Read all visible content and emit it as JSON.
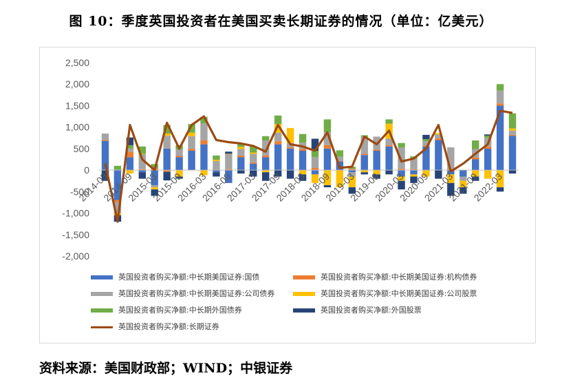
{
  "title": "图 10：季度英国投资者在美国买卖长期证券的情况（单位：亿美元）",
  "source": "资料来源：美国财政部；WIND；中银证券",
  "chart_data": {
    "type": "bar",
    "stacked": true,
    "title": "",
    "xlabel": "",
    "ylabel": "",
    "ylim": [
      -2000,
      2500
    ],
    "yticks": [
      2500,
      2000,
      1500,
      1000,
      500,
      0,
      -500,
      -1000,
      -1500,
      -2000
    ],
    "ytick_labels": [
      "2,500",
      "2,000",
      "1,500",
      "1,000",
      "500",
      "0",
      "-500",
      "-1,000",
      "-1,500",
      "-2,000"
    ],
    "categories": [
      "2014-03",
      "2014-06",
      "2014-09",
      "2014-12",
      "2015-03",
      "2015-06",
      "2015-09",
      "2015-12",
      "2016-03",
      "2016-06",
      "2016-09",
      "2016-12",
      "2017-03",
      "2017-06",
      "2017-09",
      "2017-12",
      "2018-03",
      "2018-06",
      "2018-09",
      "2018-12",
      "2019-03",
      "2019-06",
      "2019-09",
      "2019-12",
      "2020-03",
      "2020-06",
      "2020-09",
      "2020-12",
      "2021-03",
      "2021-06",
      "2021-09",
      "2021-12",
      "2022-03",
      "2022-06"
    ],
    "x_tick_labels": [
      "2014-03",
      "2014-09",
      "2015-03",
      "2015-09",
      "2016-03",
      "2016-09",
      "2017-03",
      "2017-09",
      "2018-03",
      "2018-09",
      "2019-03",
      "2019-09",
      "2020-03",
      "2020-09",
      "2021-03",
      "2021-09",
      "2022-03"
    ],
    "grid": false,
    "legend_position": "bottom",
    "series": [
      {
        "name": "英国投资者购买净额:中长期美国证券:国债",
        "color": "#4472c4",
        "values": [
          680,
          -700,
          300,
          -50,
          -350,
          500,
          300,
          450,
          600,
          -50,
          -300,
          300,
          150,
          300,
          600,
          500,
          450,
          -100,
          500,
          200,
          -50,
          350,
          450,
          550,
          -150,
          -100,
          550,
          700,
          -100,
          -150,
          250,
          500,
          1500,
          800
        ]
      },
      {
        "name": "英国投资者购买净额:中长期美国证券:机构债券",
        "color": "#ed7d31",
        "values": [
          20,
          -50,
          120,
          20,
          40,
          -40,
          30,
          40,
          90,
          10,
          20,
          40,
          30,
          40,
          70,
          30,
          40,
          50,
          80,
          10,
          30,
          30,
          30,
          30,
          30,
          20,
          20,
          30,
          30,
          10,
          40,
          50,
          50,
          20
        ]
      },
      {
        "name": "英国投资者购买净额:中长期美国证券:公司债券",
        "color": "#a5a5a5",
        "values": [
          150,
          -250,
          80,
          350,
          -50,
          300,
          150,
          300,
          400,
          200,
          350,
          150,
          200,
          350,
          200,
          100,
          150,
          250,
          300,
          100,
          -100,
          400,
          300,
          150,
          500,
          250,
          100,
          100,
          500,
          -100,
          200,
          200,
          300,
          100
        ]
      },
      {
        "name": "英国投资者购买净额:中长期美国证券:公司股票",
        "color": "#ffc000",
        "values": [
          0,
          -50,
          -80,
          10,
          -50,
          50,
          -150,
          80,
          -120,
          30,
          10,
          50,
          30,
          -50,
          200,
          350,
          -100,
          -200,
          -350,
          -400,
          -250,
          -50,
          -100,
          350,
          -100,
          -50,
          -150,
          30,
          -200,
          -150,
          -150,
          -200,
          -400,
          50
        ]
      },
      {
        "name": "英国投资者购买净额:中长期外国债券",
        "color": "#70ad47",
        "values": [
          0,
          100,
          80,
          170,
          100,
          200,
          100,
          200,
          150,
          100,
          0,
          80,
          150,
          100,
          200,
          0,
          200,
          150,
          300,
          150,
          50,
          30,
          0,
          100,
          100,
          50,
          50,
          0,
          0,
          0,
          200,
          50,
          150,
          350
        ]
      },
      {
        "name": "英国投资者购买净额:外国股票",
        "color": "#264478",
        "values": [
          -250,
          -150,
          180,
          -150,
          -150,
          -200,
          -50,
          0,
          0,
          -100,
          50,
          -80,
          -150,
          -200,
          -150,
          -200,
          -150,
          280,
          -50,
          0,
          -150,
          -50,
          -100,
          -100,
          -200,
          -150,
          100,
          -200,
          -300,
          -150,
          -100,
          30,
          -100,
          -80
        ]
      },
      {
        "name": "英国投资者购买净额:长期证券",
        "color": "#9c4a12",
        "type": "line",
        "values": [
          150,
          -1200,
          1050,
          250,
          0,
          1100,
          500,
          1050,
          1250,
          700,
          650,
          620,
          560,
          430,
          1050,
          600,
          550,
          450,
          880,
          50,
          80,
          780,
          600,
          920,
          200,
          270,
          500,
          1050,
          -30,
          150,
          380,
          600,
          1380,
          1330
        ]
      }
    ]
  }
}
